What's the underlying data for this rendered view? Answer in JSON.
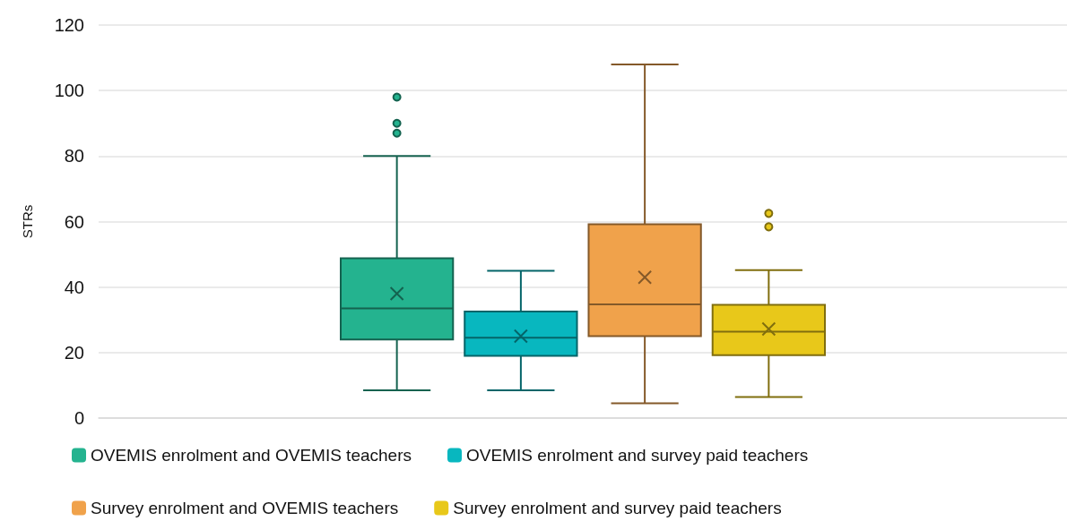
{
  "chart_data": {
    "type": "box",
    "ylabel": "STRs",
    "categories": [
      null
    ],
    "ylim": [
      0,
      120
    ],
    "yticks": [
      0,
      20,
      40,
      60,
      80,
      100,
      120
    ],
    "grid": "y",
    "legend": "bottom",
    "series": [
      {
        "name": "OVEMIS enrolment and OVEMIS teachers",
        "color": "#24b38f",
        "boxes": [
          {
            "low": 8.5,
            "q1": 24,
            "median": 33.5,
            "q3": 48.8,
            "high": 80,
            "mean": 38,
            "outliers": [
              87,
              90,
              98
            ]
          }
        ]
      },
      {
        "name": "OVEMIS enrolment and survey paid teachers",
        "color": "#08b7bf",
        "boxes": [
          {
            "low": 8.5,
            "q1": 19,
            "median": 24.5,
            "q3": 32.5,
            "high": 45,
            "mean": 25
          }
        ]
      },
      {
        "name": "Survey enrolment and OVEMIS teachers",
        "color": "#f0a24b",
        "boxes": [
          {
            "low": 4.5,
            "q1": 25,
            "median": 34.7,
            "q3": 59.2,
            "high": 108,
            "mean": 43
          }
        ]
      },
      {
        "name": "Survey enrolment and survey paid teachers",
        "color": "#e8c81a",
        "boxes": [
          {
            "low": 6.4,
            "q1": 19.2,
            "median": 26.4,
            "q3": 34.6,
            "high": 45.2,
            "mean": 27.2,
            "outliers": [
              58.4,
              62.5
            ]
          }
        ]
      }
    ]
  }
}
